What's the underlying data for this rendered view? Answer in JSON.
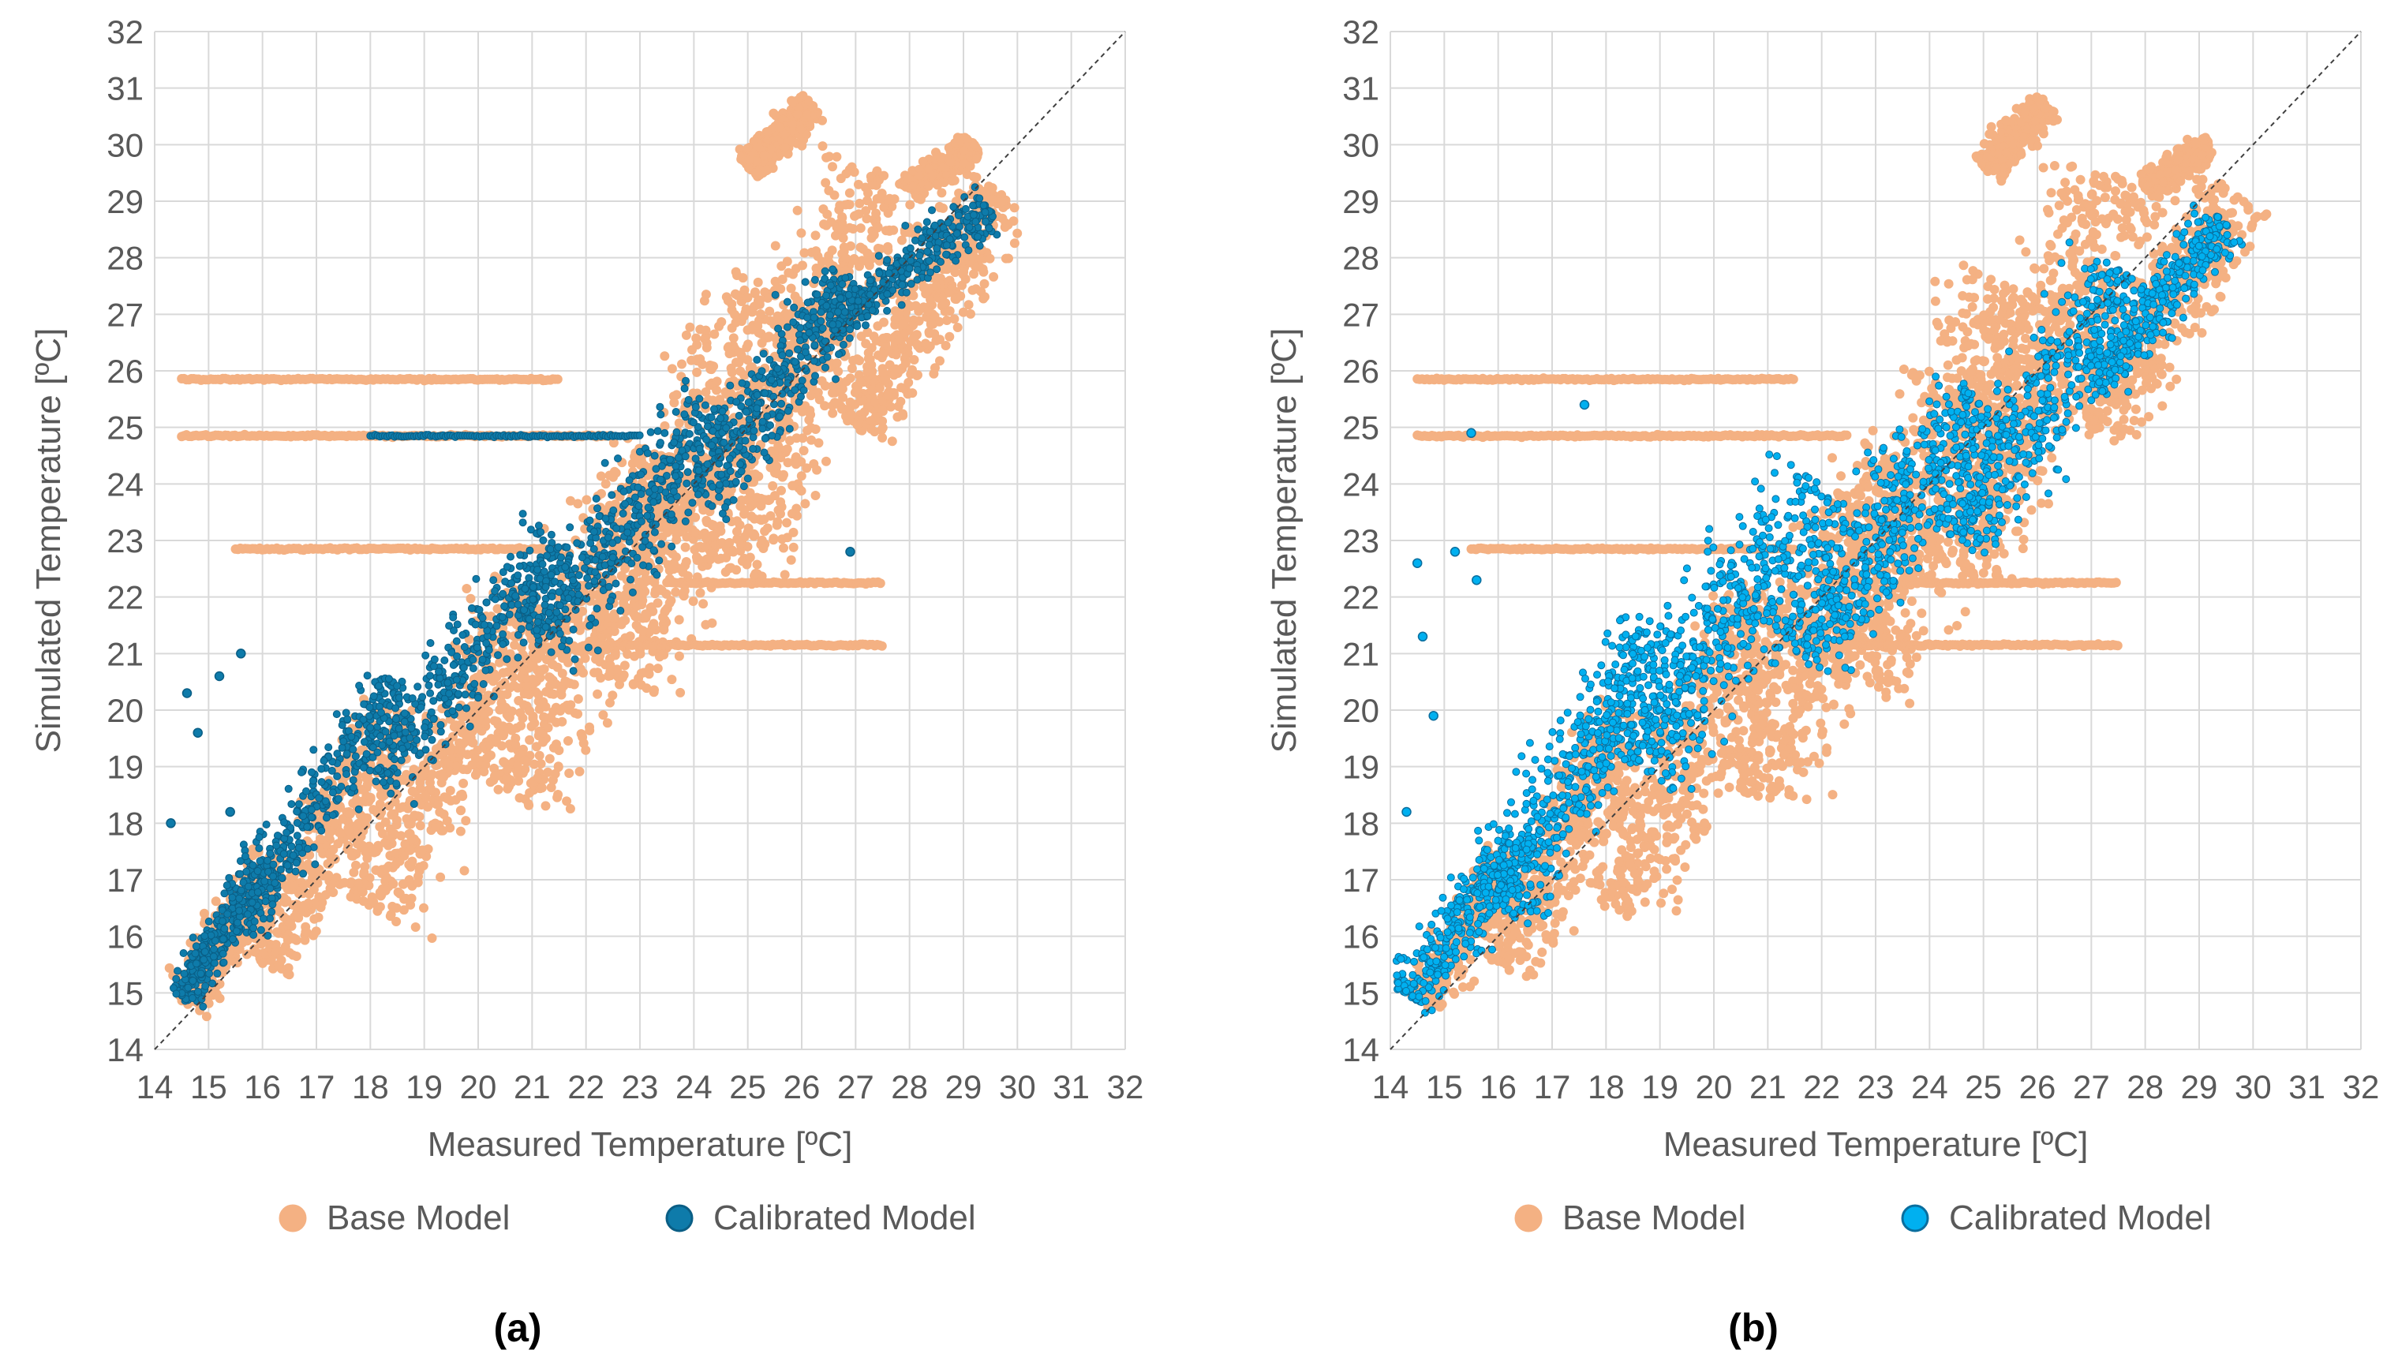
{
  "chart_data": [
    {
      "type": "scatter",
      "panel_label": "(a)",
      "xlabel": "Measured Temperature [ºC]",
      "ylabel": "Simulated Temperature [ºC]",
      "xlim": [
        14,
        32
      ],
      "ylim": [
        14,
        32
      ],
      "x_ticks": [
        14,
        15,
        16,
        17,
        18,
        19,
        20,
        21,
        22,
        23,
        24,
        25,
        26,
        27,
        28,
        29,
        30,
        31,
        32
      ],
      "y_ticks": [
        14,
        15,
        16,
        17,
        18,
        19,
        20,
        21,
        22,
        23,
        24,
        25,
        26,
        27,
        28,
        29,
        30,
        31,
        32
      ],
      "grid": true,
      "reference_line": "y = x (dashed)",
      "legend_placement": "bottom",
      "series": [
        {
          "name": "Base Model",
          "color": "#F4B183",
          "edge_color": "#F4B183",
          "bands": [
            {
              "x": [
                14.6,
                16.2
              ],
              "y": [
                14.8,
                17.4
              ],
              "width": 1.3
            },
            {
              "x": [
                16.0,
                18.5
              ],
              "y": [
                15.5,
                20.0
              ],
              "width": 2.0
            },
            {
              "x": [
                18.0,
                21.0
              ],
              "y": [
                16.5,
                22.0
              ],
              "width": 2.6
            },
            {
              "x": [
                20.5,
                23.5
              ],
              "y": [
                18.5,
                24.5
              ],
              "width": 3.2
            },
            {
              "x": [
                22.5,
                25.5
              ],
              "y": [
                20.5,
                27.5
              ],
              "width": 3.6
            },
            {
              "x": [
                24.5,
                27.5
              ],
              "y": [
                22.5,
                29.5
              ],
              "width": 3.2
            },
            {
              "x": [
                27.0,
                29.6
              ],
              "y": [
                25.0,
                29.2
              ],
              "width": 2.2
            },
            {
              "x": [
                25.0,
                26.2
              ],
              "y": [
                29.6,
                30.7
              ],
              "width": 1.0
            },
            {
              "x": [
                28.0,
                29.2
              ],
              "y": [
                29.2,
                30.0
              ],
              "width": 0.8
            }
          ],
          "lines": [
            {
              "x": [
                14.5,
                21.5
              ],
              "y": 25.85
            },
            {
              "x": [
                14.5,
                22.5
              ],
              "y": 24.85
            },
            {
              "x": [
                15.5,
                21.5
              ],
              "y": 22.85
            },
            {
              "x": [
                23.5,
                27.5
              ],
              "y": 22.25
            },
            {
              "x": [
                22.0,
                27.5
              ],
              "y": 21.15
            }
          ]
        },
        {
          "name": "Calibrated Model",
          "color": "#0E7BAA",
          "edge_color": "#0A5E85",
          "bands": [
            {
              "x": [
                14.5,
                16.0
              ],
              "y": [
                14.9,
                17.2
              ],
              "width": 1.1
            },
            {
              "x": [
                15.5,
                18.5
              ],
              "y": [
                16.2,
                20.5
              ],
              "width": 1.6
            },
            {
              "x": [
                18.0,
                21.5
              ],
              "y": [
                18.8,
                23.0
              ],
              "width": 2.0
            },
            {
              "x": [
                21.0,
                24.5
              ],
              "y": [
                21.3,
                25.3
              ],
              "width": 2.2
            },
            {
              "x": [
                24.0,
                27.0
              ],
              "y": [
                23.8,
                27.6
              ],
              "width": 2.0
            },
            {
              "x": [
                26.5,
                29.5
              ],
              "y": [
                26.8,
                28.9
              ],
              "width": 1.3
            }
          ],
          "lines": [
            {
              "x": [
                18.0,
                23.0
              ],
              "y": 24.85
            }
          ],
          "outliers": [
            [
              14.3,
              18.0
            ],
            [
              14.6,
              20.3
            ],
            [
              14.8,
              19.6
            ],
            [
              15.2,
              20.6
            ],
            [
              15.6,
              21.0
            ],
            [
              15.4,
              18.2
            ],
            [
              26.9,
              22.8
            ]
          ]
        }
      ]
    },
    {
      "type": "scatter",
      "panel_label": "(b)",
      "xlabel": "Measured Temperature [ºC]",
      "ylabel": "Simulated Temperature [ºC]",
      "xlim": [
        14,
        32
      ],
      "ylim": [
        14,
        32
      ],
      "x_ticks": [
        14,
        15,
        16,
        17,
        18,
        19,
        20,
        21,
        22,
        23,
        24,
        25,
        26,
        27,
        28,
        29,
        30,
        31,
        32
      ],
      "y_ticks": [
        14,
        15,
        16,
        17,
        18,
        19,
        20,
        21,
        22,
        23,
        24,
        25,
        26,
        27,
        28,
        29,
        30,
        31,
        32
      ],
      "grid": true,
      "reference_line": "y = x (dashed)",
      "legend_placement": "bottom",
      "series": [
        {
          "name": "Base Model",
          "color": "#F4B183",
          "edge_color": "#F4B183",
          "bands": [
            {
              "x": [
                14.6,
                16.2
              ],
              "y": [
                14.8,
                17.4
              ],
              "width": 1.3
            },
            {
              "x": [
                16.0,
                18.5
              ],
              "y": [
                15.5,
                20.0
              ],
              "width": 2.0
            },
            {
              "x": [
                18.0,
                21.0
              ],
              "y": [
                16.5,
                22.0
              ],
              "width": 2.6
            },
            {
              "x": [
                20.5,
                23.5
              ],
              "y": [
                18.5,
                24.5
              ],
              "width": 3.2
            },
            {
              "x": [
                22.5,
                25.5
              ],
              "y": [
                20.5,
                27.5
              ],
              "width": 3.6
            },
            {
              "x": [
                24.5,
                27.5
              ],
              "y": [
                22.5,
                29.5
              ],
              "width": 3.2
            },
            {
              "x": [
                27.0,
                29.6
              ],
              "y": [
                25.0,
                29.2
              ],
              "width": 2.2
            },
            {
              "x": [
                25.0,
                26.2
              ],
              "y": [
                29.6,
                30.7
              ],
              "width": 1.0
            },
            {
              "x": [
                28.0,
                29.2
              ],
              "y": [
                29.2,
                30.0
              ],
              "width": 0.8
            }
          ],
          "lines": [
            {
              "x": [
                14.5,
                21.5
              ],
              "y": 25.85
            },
            {
              "x": [
                14.5,
                22.5
              ],
              "y": 24.85
            },
            {
              "x": [
                15.5,
                21.5
              ],
              "y": 22.85
            },
            {
              "x": [
                23.5,
                27.5
              ],
              "y": 22.25
            },
            {
              "x": [
                22.0,
                27.5
              ],
              "y": 21.15
            }
          ]
        },
        {
          "name": "Calibrated Model",
          "color": "#00B0F0",
          "edge_color": "#0A6E9E",
          "bands": [
            {
              "x": [
                14.3,
                16.5
              ],
              "y": [
                14.9,
                17.8
              ],
              "width": 1.5
            },
            {
              "x": [
                16.0,
                19.0
              ],
              "y": [
                16.5,
                21.5
              ],
              "width": 2.4
            },
            {
              "x": [
                18.5,
                22.0
              ],
              "y": [
                19.0,
                24.0
              ],
              "width": 2.8
            },
            {
              "x": [
                21.5,
                25.0
              ],
              "y": [
                21.0,
                25.5
              ],
              "width": 2.8
            },
            {
              "x": [
                24.5,
                27.5
              ],
              "y": [
                23.0,
                27.8
              ],
              "width": 2.4
            },
            {
              "x": [
                27.0,
                29.5
              ],
              "y": [
                25.8,
                28.6
              ],
              "width": 1.5
            }
          ],
          "outliers": [
            [
              14.3,
              18.2
            ],
            [
              14.5,
              22.6
            ],
            [
              14.6,
              21.3
            ],
            [
              14.8,
              19.9
            ],
            [
              15.2,
              22.8
            ],
            [
              15.6,
              22.3
            ],
            [
              15.5,
              24.9
            ],
            [
              17.6,
              25.4
            ]
          ]
        }
      ]
    }
  ]
}
